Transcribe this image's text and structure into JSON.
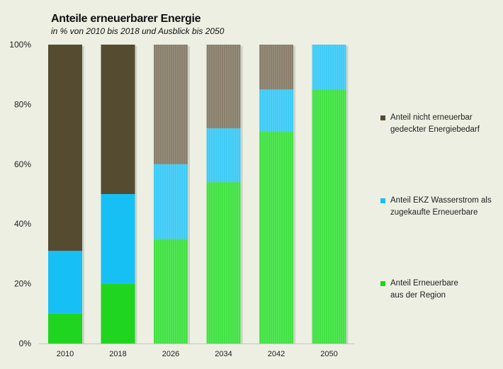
{
  "chart_data": {
    "type": "bar",
    "stacked": true,
    "title": "Anteile erneuerbarer Energie",
    "subtitle": "in % von 2010 bis 2018 und Ausblick bis 2050",
    "categories": [
      "2010",
      "2018",
      "2026",
      "2034",
      "2042",
      "2050"
    ],
    "series": [
      {
        "name": "Anteil Erneuerbare aus der Region",
        "values": [
          10,
          20,
          35,
          54,
          71,
          85
        ],
        "color": "#1fd51f",
        "forecast_color": "#43e245"
      },
      {
        "name": "Anteil EKZ Wasserstrom als zugekaufte Erneuerbare",
        "values": [
          21,
          30,
          25,
          18,
          14,
          15
        ],
        "color": "#16c0f5",
        "forecast_color": "#3fcbf6"
      },
      {
        "name": "Anteil nicht erneuerbar gedeckter Energiebedarf",
        "values": [
          69,
          50,
          40,
          28,
          15,
          0
        ],
        "color": "#544b31",
        "forecast_color": "#8a806c"
      }
    ],
    "yticks": [
      "0%",
      "20%",
      "40%",
      "60%",
      "80%",
      "100%"
    ],
    "ylim": [
      0,
      100
    ],
    "grid": false,
    "legend_position": "right"
  },
  "legend": [
    {
      "line1": "Anteil nicht erneuerbar",
      "line2": "gedeckter Energiebedarf"
    },
    {
      "line1": "Anteil EKZ Wasserstrom als",
      "line2": "zugekaufte Erneuerbare"
    },
    {
      "line1": "Anteil Erneuerbare",
      "line2": "aus der Region"
    }
  ]
}
